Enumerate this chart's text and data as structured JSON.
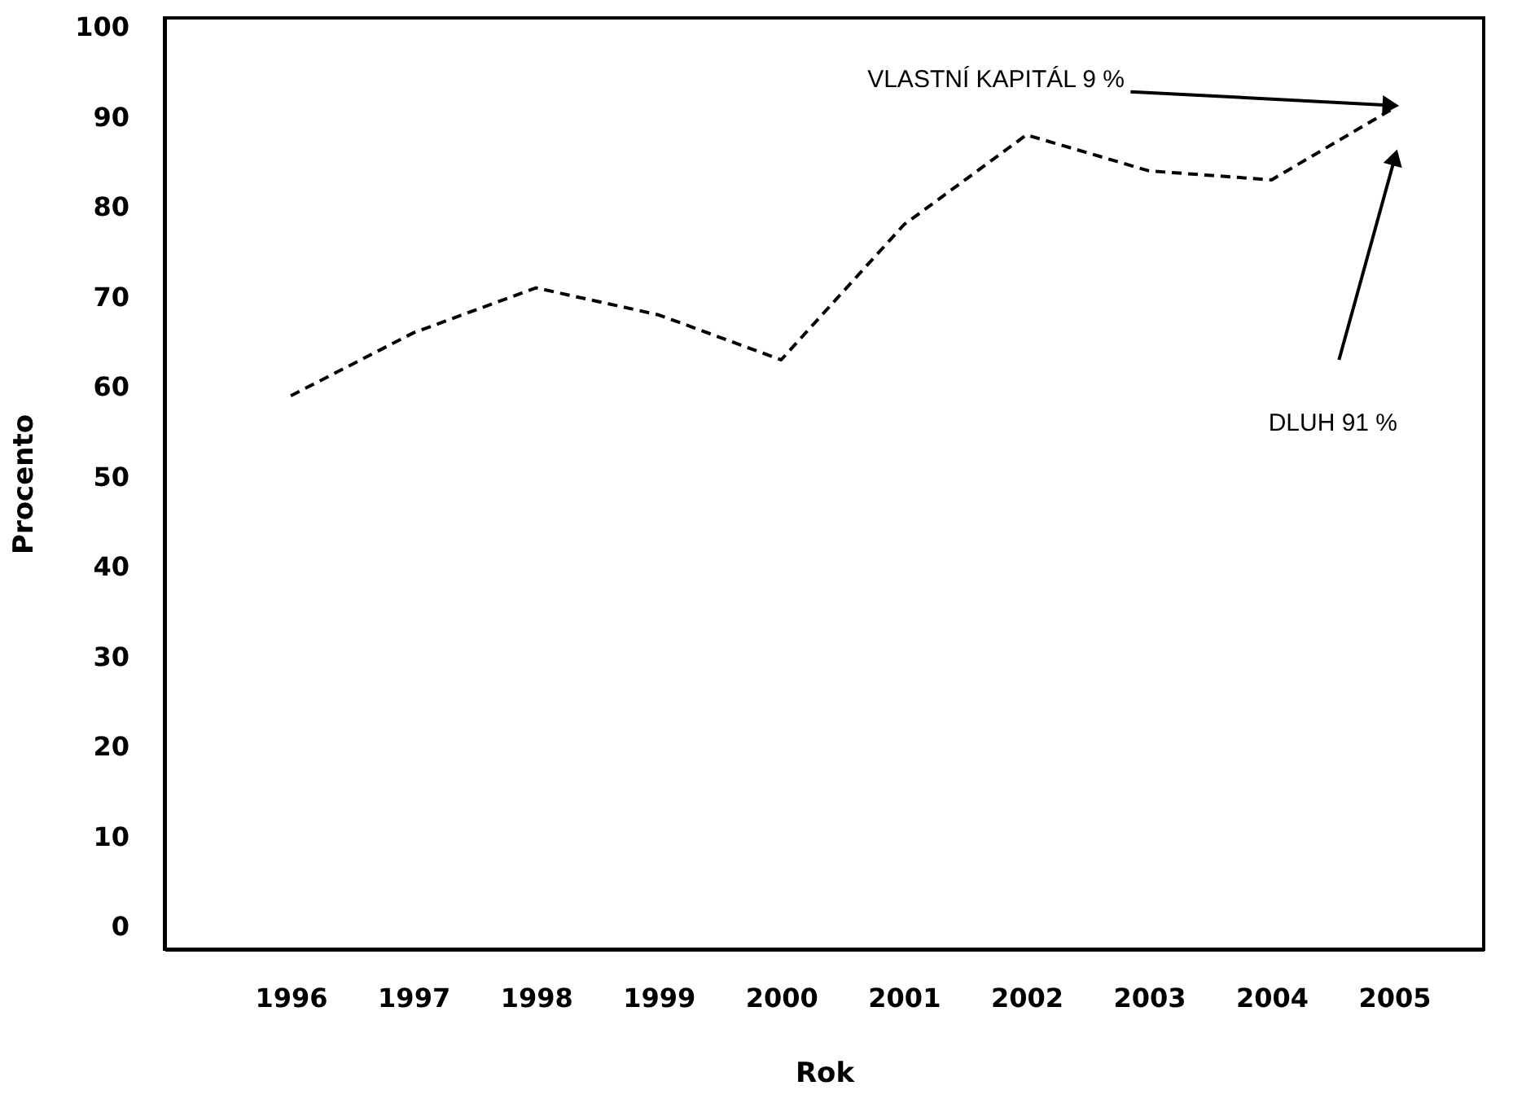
{
  "chart_data": {
    "type": "line",
    "xlabel": "Rok",
    "ylabel": "Procento",
    "categories": [
      "1996",
      "1997",
      "1998",
      "1999",
      "2000",
      "2001",
      "2002",
      "2003",
      "2004",
      "2005"
    ],
    "series": [
      {
        "color": "#000000",
        "values": [
          59,
          66,
          71,
          68,
          63,
          78,
          88,
          84,
          83,
          91
        ],
        "line_style": "dashed",
        "marker": "none"
      }
    ],
    "ylim": [
      -2.5,
      101
    ],
    "yticks": [
      0,
      10,
      20,
      30,
      40,
      50,
      60,
      70,
      80,
      90,
      100
    ],
    "grid": false,
    "annotations": [
      {
        "text": "VLASTNÍ KAPITÁL 9 %",
        "x": "2005",
        "y": 91
      },
      "DLUH 91 %"
    ]
  }
}
